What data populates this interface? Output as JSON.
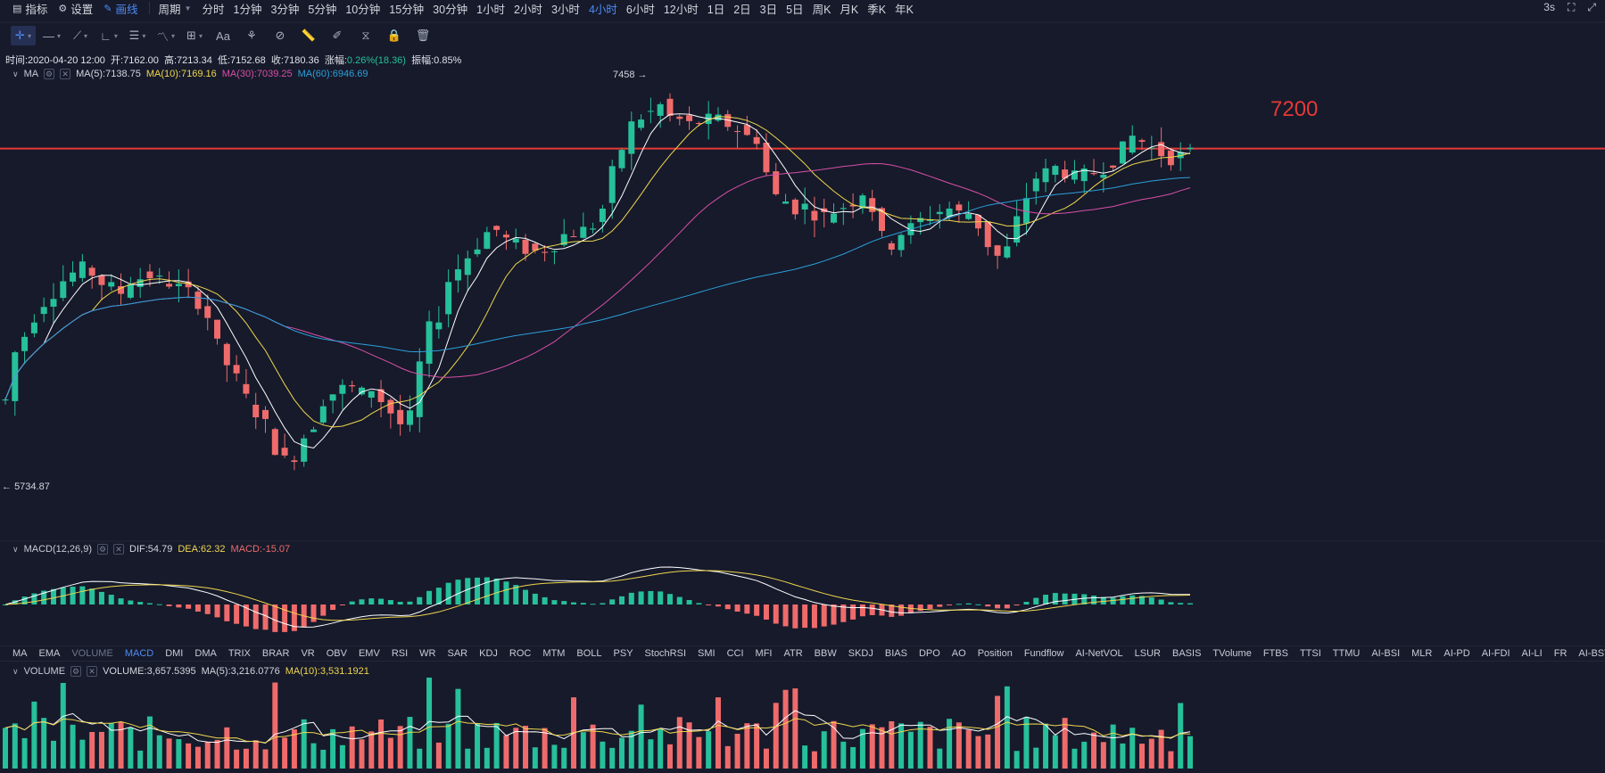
{
  "topbar": {
    "indicators_label": "指标",
    "settings_label": "设置",
    "draw_label": "画线",
    "period_label": "周期",
    "periods": [
      "分时",
      "1分钟",
      "3分钟",
      "5分钟",
      "10分钟",
      "15分钟",
      "30分钟",
      "1小时",
      "2小时",
      "3小时",
      "4小时",
      "6小时",
      "12小时",
      "1日",
      "2日",
      "3日",
      "5日",
      "周K",
      "月K",
      "季K",
      "年K"
    ],
    "active_period": "4小时",
    "refresh": "3s"
  },
  "info": {
    "time": "时间:2020-04-20 12:00",
    "open": "开:7162.00",
    "high": "高:7213.34",
    "low": "低:7152.68",
    "close": "收:7180.36",
    "change": "涨幅:",
    "change_value": "0.26%(18.36)",
    "amplitude": "振幅:0.85%"
  },
  "ma_legend": {
    "name": "MA",
    "ma5": "MA(5):7138.75",
    "ma10": "MA(10):7169.16",
    "ma30": "MA(30):7039.25",
    "ma60": "MA(60):6946.69"
  },
  "macd_legend": {
    "name": "MACD(12,26,9)",
    "dif": "DIF:54.79",
    "dea": "DEA:62.32",
    "macd": "MACD:-15.07"
  },
  "volume_legend": {
    "name": "VOLUME",
    "volume": "VOLUME:3,657.5395",
    "ma5": "MA(5):3,216.0776",
    "ma10": "MA(10):3,531.1921"
  },
  "indicator_tabs": [
    "MA",
    "EMA",
    "VOLUME",
    "MACD",
    "DMI",
    "DMA",
    "TRIX",
    "BRAR",
    "VR",
    "OBV",
    "EMV",
    "RSI",
    "WR",
    "SAR",
    "KDJ",
    "ROC",
    "MTM",
    "BOLL",
    "PSY",
    "StochRSI",
    "SMI",
    "CCI",
    "MFI",
    "ATR",
    "BBW",
    "SKDJ",
    "BIAS",
    "DPO",
    "AO",
    "Position",
    "Fundflow",
    "AI-NetVOL",
    "LSUR",
    "BASIS",
    "TVolume",
    "FTBS",
    "TTSI",
    "TTMU",
    "AI-BSI",
    "MLR",
    "AI-PD",
    "AI-FDI",
    "AI-LI",
    "FR",
    "AI-BST"
  ],
  "active_indicator_tab": "MACD",
  "dim_indicator_tab": "VOLUME",
  "annotations": {
    "high_marker": "7458",
    "low_marker": "5734.87",
    "level_label": "7200"
  },
  "colors": {
    "background": "#161a2b",
    "up": "#26c09a",
    "down": "#ef6b6b",
    "ma5": "#ffffff",
    "ma10": "#f0d64e",
    "ma30": "#d94fa6",
    "ma60": "#2c9fd9",
    "level_line": "#e53935",
    "accent": "#4e8cf5"
  },
  "chart_data": {
    "type": "candlestick",
    "interval": "4小时",
    "y_range": [
      5700,
      7500
    ],
    "horizontal_level": 7200,
    "ma_close_path": [
      6150,
      6350,
      6420,
      6500,
      6560,
      6600,
      6650,
      6680,
      6700,
      6680,
      6640,
      6620,
      6600,
      6650,
      6660,
      6670,
      6650,
      6640,
      6620,
      6600,
      6560,
      6500,
      6380,
      6300,
      6240,
      6160,
      6100,
      6050,
      5950,
      5900,
      5920,
      6000,
      6050,
      6150,
      6180,
      6200,
      6200,
      6180,
      6200,
      6150,
      6100,
      6050,
      6080,
      6300,
      6450,
      6500,
      6650,
      6700,
      6750,
      6800,
      6850,
      6860,
      6820,
      6800,
      6780,
      6770,
      6780,
      6800,
      6840,
      6850,
      6860,
      6880,
      6950,
      7100,
      7200,
      7300,
      7330,
      7350,
      7380,
      7330,
      7320,
      7300,
      7310,
      7320,
      7320,
      7300,
      7280,
      7250,
      7240,
      7100,
      7000,
      6980,
      6950,
      6960,
      6930,
      6920,
      6940,
      6960,
      6980,
      7020,
      6950,
      6830,
      6800,
      6850,
      6870,
      6900,
      6920,
      6940,
      6950,
      6930,
      6930,
      6880,
      6800,
      6750,
      6780,
      6900,
      7000,
      7080,
      7100,
      7120,
      7100,
      7080,
      7090,
      7100,
      7120,
      7150,
      7200,
      7250,
      7230,
      7200,
      7180,
      7160,
      7170,
      7180
    ]
  }
}
